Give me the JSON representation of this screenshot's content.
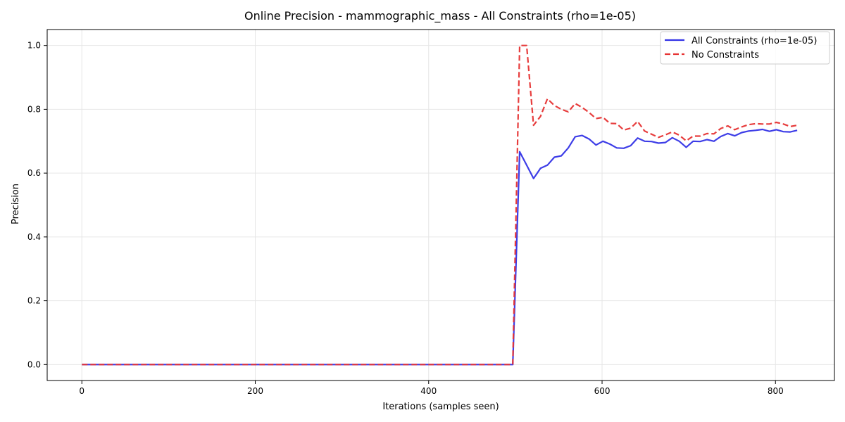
{
  "chart_data": {
    "type": "line",
    "title": "Online Precision - mammographic_mass - All Constraints (rho=1e-05)",
    "xlabel": "Iterations (samples seen)",
    "ylabel": "Precision",
    "xlim": [
      -40,
      868
    ],
    "ylim": [
      -0.05,
      1.05
    ],
    "x_ticks": [
      0,
      200,
      400,
      600,
      800
    ],
    "y_ticks": [
      0.0,
      0.2,
      0.4,
      0.6,
      0.8,
      1.0
    ],
    "x_tick_labels": [
      "0",
      "200",
      "400",
      "600",
      "800"
    ],
    "y_tick_labels": [
      "0.0",
      "0.2",
      "0.4",
      "0.6",
      "0.8",
      "1.0"
    ],
    "grid": true,
    "legend_position": "top-right",
    "series": [
      {
        "name": "All Constraints (rho=1e-05)",
        "color": "#3333e6",
        "style": "solid",
        "x": [
          0,
          497,
          505,
          513,
          521,
          529,
          537,
          545,
          553,
          561,
          569,
          577,
          585,
          593,
          601,
          609,
          617,
          625,
          633,
          641,
          649,
          657,
          665,
          673,
          681,
          689,
          697,
          705,
          713,
          721,
          729,
          737,
          745,
          753,
          761,
          769,
          777,
          785,
          793,
          801,
          809,
          817,
          825
        ],
        "y": [
          0.0,
          0.0,
          0.667,
          0.625,
          0.583,
          0.615,
          0.625,
          0.65,
          0.654,
          0.679,
          0.714,
          0.718,
          0.707,
          0.688,
          0.7,
          0.691,
          0.679,
          0.678,
          0.686,
          0.71,
          0.7,
          0.699,
          0.694,
          0.696,
          0.711,
          0.7,
          0.681,
          0.7,
          0.699,
          0.705,
          0.7,
          0.715,
          0.724,
          0.717,
          0.727,
          0.732,
          0.734,
          0.737,
          0.731,
          0.736,
          0.73,
          0.729,
          0.734
        ]
      },
      {
        "name": "No Constraints",
        "color": "#e63333",
        "style": "dashed",
        "x": [
          0,
          497,
          505,
          513,
          521,
          529,
          537,
          545,
          553,
          561,
          569,
          577,
          585,
          593,
          601,
          609,
          617,
          625,
          633,
          641,
          649,
          657,
          665,
          673,
          681,
          689,
          697,
          705,
          713,
          721,
          729,
          737,
          745,
          753,
          761,
          769,
          777,
          785,
          793,
          801,
          809,
          817,
          825
        ],
        "y": [
          0.0,
          0.0,
          1.0,
          1.0,
          0.75,
          0.778,
          0.833,
          0.812,
          0.8,
          0.792,
          0.818,
          0.806,
          0.79,
          0.771,
          0.775,
          0.756,
          0.755,
          0.735,
          0.741,
          0.762,
          0.732,
          0.722,
          0.712,
          0.72,
          0.729,
          0.719,
          0.701,
          0.716,
          0.716,
          0.724,
          0.723,
          0.74,
          0.748,
          0.736,
          0.745,
          0.752,
          0.755,
          0.754,
          0.754,
          0.759,
          0.754,
          0.746,
          0.75
        ]
      }
    ]
  }
}
